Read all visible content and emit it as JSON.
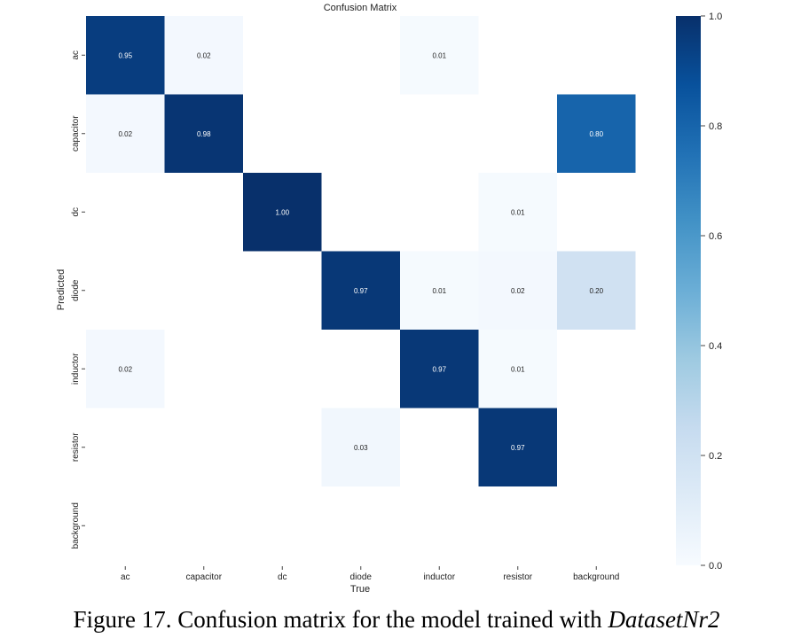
{
  "chart_data": {
    "type": "heatmap",
    "title": "Confusion Matrix",
    "xlabel": "True",
    "ylabel": "Predicted",
    "x_categories": [
      "ac",
      "capacitor",
      "dc",
      "diode",
      "inductor",
      "resistor",
      "background"
    ],
    "y_categories": [
      "ac",
      "capacitor",
      "dc",
      "diode",
      "inductor",
      "resistor",
      "background"
    ],
    "values": [
      [
        0.95,
        0.02,
        null,
        null,
        0.01,
        null,
        null
      ],
      [
        0.02,
        0.98,
        null,
        null,
        null,
        null,
        0.8
      ],
      [
        null,
        null,
        1.0,
        null,
        null,
        0.01,
        null
      ],
      [
        null,
        null,
        null,
        0.97,
        0.01,
        0.02,
        0.2
      ],
      [
        0.02,
        null,
        null,
        null,
        0.97,
        0.01,
        null
      ],
      [
        null,
        null,
        null,
        0.03,
        null,
        0.97,
        null
      ],
      [
        null,
        null,
        null,
        null,
        null,
        null,
        null
      ]
    ],
    "colorbar": {
      "range": [
        0.0,
        1.0
      ],
      "ticks": [
        "0.0",
        "0.2",
        "0.4",
        "0.6",
        "0.8",
        "1.0"
      ],
      "colormap": "Blues",
      "low_color": "#f7fbff",
      "high_color": "#08306b"
    }
  },
  "caption": {
    "prefix": "Figure 17. Confusion matrix for the model trained with ",
    "italic": "DatasetNr2"
  }
}
